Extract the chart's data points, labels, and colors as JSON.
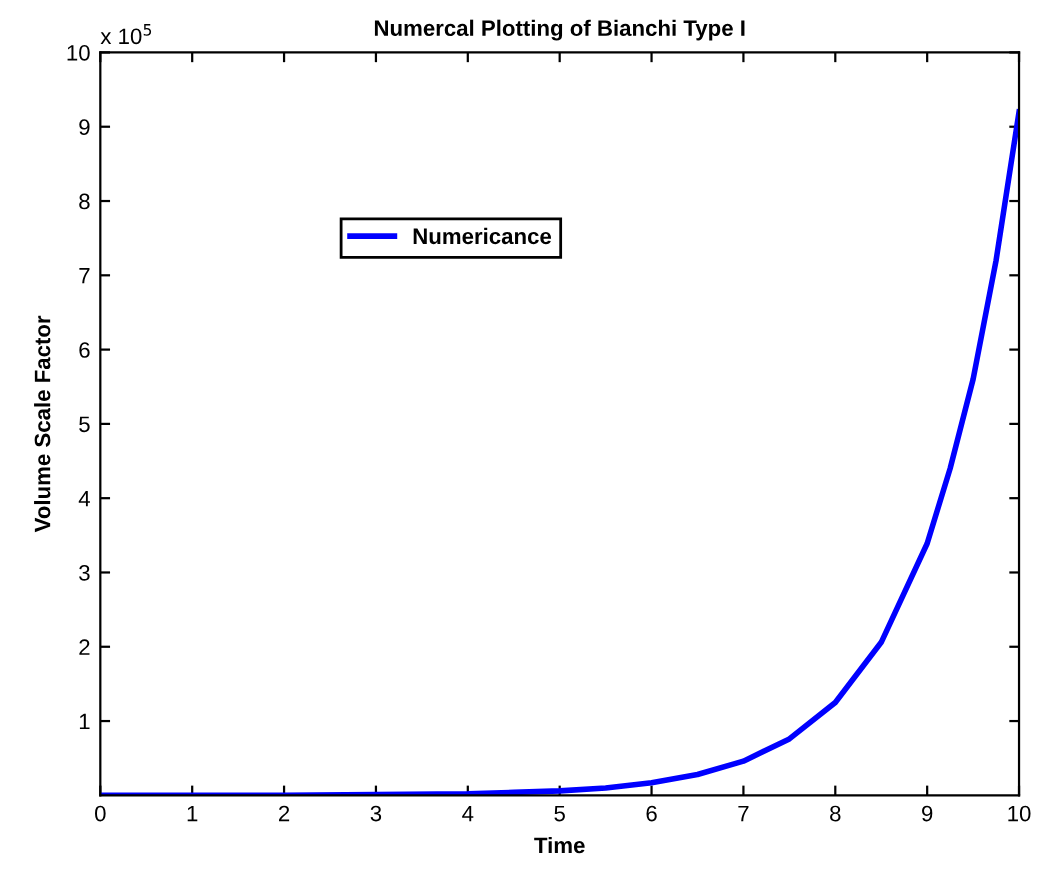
{
  "chart_data": {
    "type": "line",
    "title": "Numercal Plotting of Bianchi Type I",
    "xlabel": "Time",
    "ylabel": "Volume Scale Factor",
    "annotations": [
      "x 10$^{5}$"
    ],
    "x": [
      0,
      1,
      2,
      3,
      4,
      4.5,
      5,
      5.5,
      6,
      6.5,
      7,
      7.5,
      8,
      8.5,
      9,
      9.25,
      9.5,
      9.75,
      10
    ],
    "series": [
      {
        "name": "Numericance",
        "color": "#0000ff",
        "values": [
          0,
          0,
          0,
          0.01,
          0.02,
          0.04,
          0.06,
          0.1,
          0.17,
          0.28,
          0.46,
          0.76,
          1.25,
          2.06,
          3.39,
          4.4,
          5.6,
          7.2,
          9.2
        ]
      }
    ],
    "xlim": [
      0,
      10
    ],
    "ylim": [
      0,
      10
    ],
    "xticks": [
      0,
      1,
      2,
      3,
      4,
      5,
      6,
      7,
      8,
      9,
      10
    ],
    "yticks": [
      1,
      2,
      3,
      4,
      5,
      6,
      7,
      8,
      9,
      10
    ],
    "legend": "left",
    "grid": false,
    "marker": "none",
    "line_style": "solid"
  }
}
